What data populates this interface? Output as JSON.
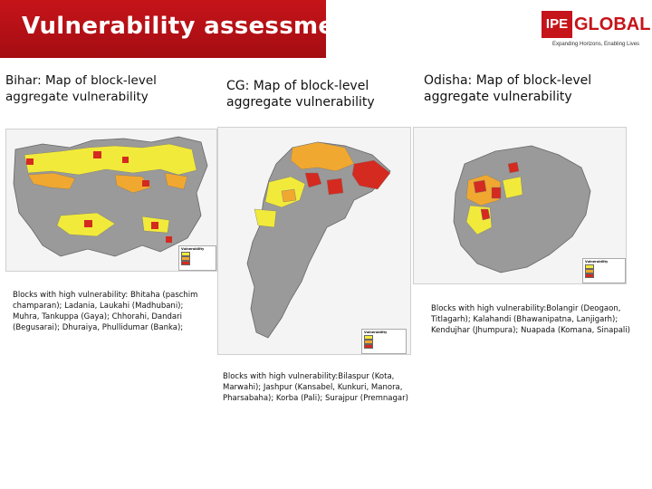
{
  "slide_title": "Vulnerability assessment",
  "logo": {
    "mark": "IPE",
    "word": "GLOBAL",
    "tagline": "Expanding Horizons, Enabling Lives"
  },
  "colors": {
    "title_bg": "#c5141a",
    "low": "#f2ea3a",
    "moderate": "#f0a830",
    "high": "#d42a20",
    "base": "#9a9a9a"
  },
  "legend_levels": [
    "low",
    "moderate",
    "high"
  ],
  "panels": [
    {
      "id": "bihar",
      "heading": "Bihar: Map of block-level aggregate vulnerability",
      "legend_title": "Vulnerability",
      "description": "Blocks with high vulnerability: Bhitaha (paschim champaran); Ladania, Laukahi (Madhubani); Muhra, Tankuppa (Gaya); Chhorahi, Dandari (Begusarai); Dhuraiya, Phullidumar (Banka);"
    },
    {
      "id": "cg",
      "heading": "CG: Map of block-level aggregate vulnerability",
      "legend_title": "Vulnerability",
      "description": "Blocks with high vulnerability:Bilaspur (Kota, Marwahi); Jashpur (Kansabel, Kunkuri, Manora, Pharsabaha); Korba (Pali); Surajpur (Premnagar)"
    },
    {
      "id": "odisha",
      "heading": "Odisha: Map of block-level aggregate vulnerability",
      "legend_title": "Vulnerability",
      "description": "Blocks with high vulnerability:Bolangir (Deogaon, Titlagarh); Kalahandi (Bhawanipatna, Lanjigarh); Kendujhar (Jhumpura); Nuapada (Komana, Sinapali)"
    }
  ]
}
